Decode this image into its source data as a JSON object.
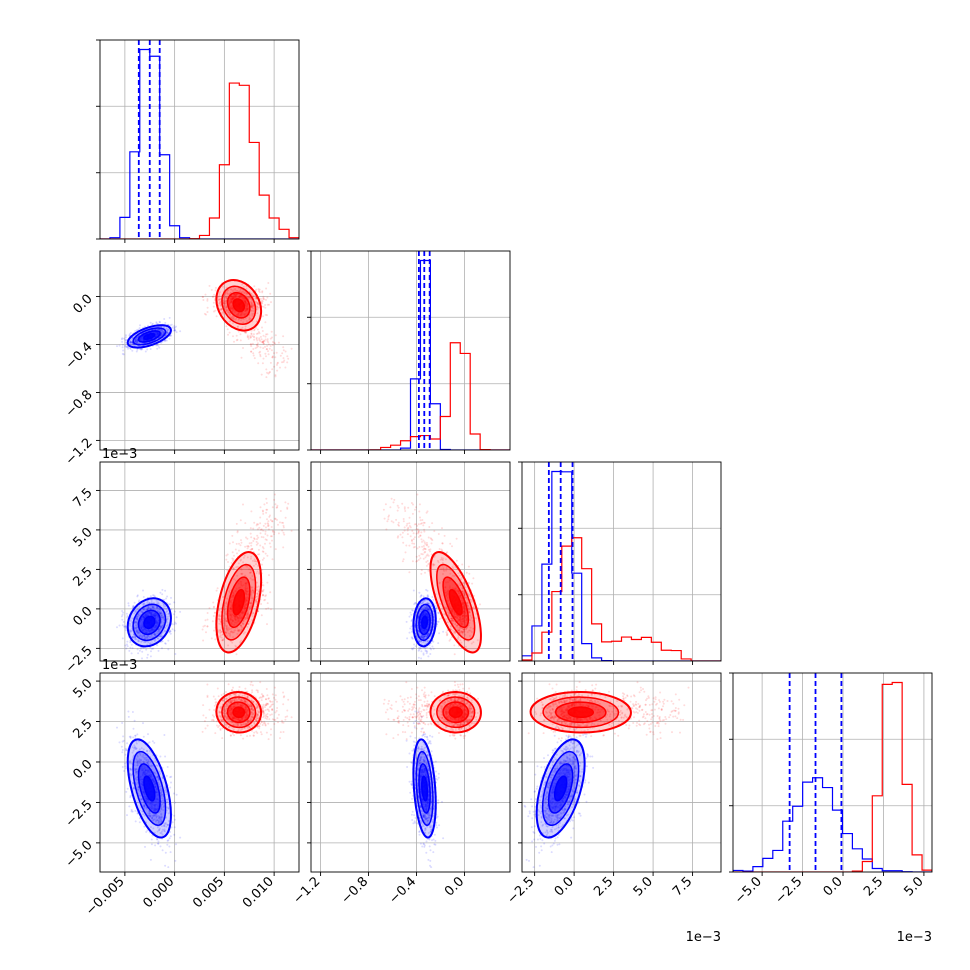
{
  "chart_data": {
    "type": "scatter",
    "subtype": "corner-plot",
    "title": "",
    "grid": true,
    "series": [
      {
        "name": "",
        "color": "#0000ff",
        "params": [
          {
            "mean": -0.0025,
            "sd": 0.0011
          },
          {
            "mean": -0.33,
            "sd": 0.045
          },
          {
            "mean": -0.00085,
            "sd": 0.00075
          },
          {
            "mean": -0.0017,
            "sd": 0.0015
          }
        ],
        "quantile_lines": [
          [
            -0.0036,
            -0.0025,
            -0.0015
          ],
          [
            -0.38,
            -0.335,
            -0.29
          ],
          [
            -0.0016,
            -0.00085,
            -0.0001
          ],
          [
            -0.0033,
            -0.0017,
            -0.0001
          ]
        ]
      },
      {
        "name": "",
        "color": "#ff0000",
        "params": [
          {
            "mean": 0.0065,
            "sd": 0.0016
          },
          {
            "mean": -0.06,
            "sd": 0.09
          },
          {
            "mean": 0.0009,
            "sd": 0.0016
          },
          {
            "mean": 0.0031,
            "sd": 0.0006
          }
        ]
      }
    ],
    "axes": [
      {
        "lim": [
          -0.0075,
          0.0125
        ],
        "ticks": [
          -0.005,
          0.0,
          0.005,
          0.01
        ],
        "tick_labels": [
          "−0.005",
          "0.000",
          "0.005",
          "0.010"
        ],
        "offset_label": ""
      },
      {
        "lim": [
          -1.28,
          0.38
        ],
        "ticks": [
          -1.2,
          -0.8,
          -0.4,
          0.0
        ],
        "tick_labels": [
          "−1.2",
          "−0.8",
          "−0.4",
          "0.0"
        ],
        "offset_label": ""
      },
      {
        "lim": [
          -0.0033,
          0.0093
        ],
        "ticks": [
          -0.0025,
          0.0,
          0.0025,
          0.005,
          0.0075
        ],
        "tick_labels": [
          "−2.5",
          "0.0",
          "2.5",
          "5.0",
          "7.5"
        ],
        "offset_label": "1e−3"
      },
      {
        "lim": [
          -0.0068,
          0.0055
        ],
        "ticks": [
          -0.005,
          -0.0025,
          0.0,
          0.0025,
          0.005
        ],
        "tick_labels": [
          "−5.0",
          "−2.5",
          "0.0",
          "2.5",
          "5.0"
        ],
        "offset_label": "1e−3"
      }
    ]
  }
}
